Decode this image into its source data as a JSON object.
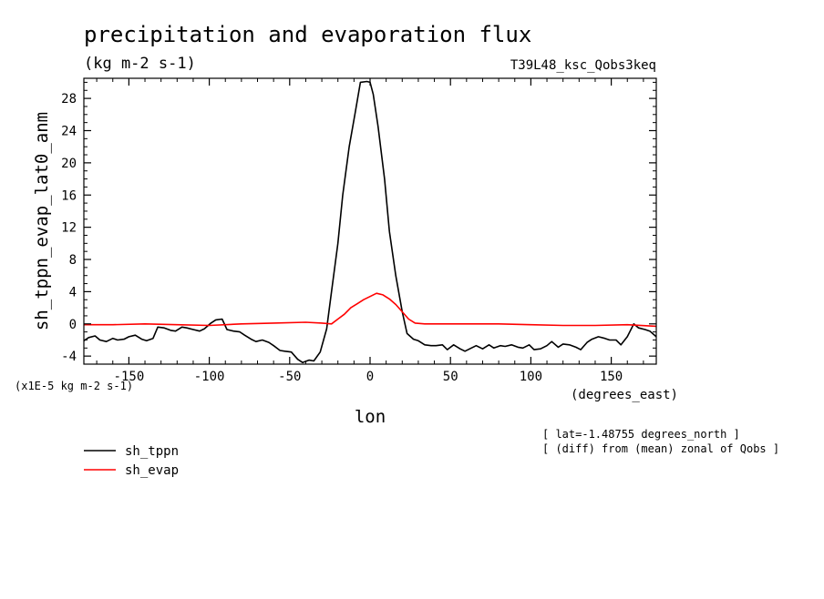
{
  "chart_data": {
    "type": "line",
    "title": "precipitation and evaporation flux",
    "subtitle": "(kg m-2 s-1)",
    "run_label": "T39L48_ksc_Qobs3keq",
    "xlabel": "lon",
    "x_units": "(degrees_east)",
    "ylabel": "sh_tppn_evap_lat0_anm",
    "y_scale_note": "(x1E-5 kg m-2 s-1)",
    "xlim": [
      -178,
      178
    ],
    "ylim": [
      -5,
      30.5
    ],
    "x_ticks": [
      -150,
      -100,
      -50,
      0,
      50,
      100,
      150
    ],
    "x_tick_labels": [
      "-150",
      "-100",
      "-50",
      "0",
      "50",
      "100",
      "150"
    ],
    "y_ticks": [
      -4,
      0,
      4,
      8,
      12,
      16,
      20,
      24,
      28
    ],
    "y_tick_labels": [
      "-4",
      "0",
      "4",
      "8",
      "12",
      "16",
      "20",
      "24",
      "28"
    ],
    "annotations": [
      "[ lat=-1.48755 degrees_north ]",
      "[ (diff) from (mean) zonal of Qobs ]"
    ],
    "legend_position": "bottom-left",
    "series": [
      {
        "name": "sh_tppn",
        "color": "#000000",
        "x": [
          -178,
          -175,
          -171,
          -168,
          -164,
          -160,
          -157,
          -153,
          -150,
          -146,
          -142,
          -139,
          -135,
          -132,
          -128,
          -124,
          -121,
          -117,
          -114,
          -110,
          -106,
          -103,
          -99,
          -96,
          -92,
          -89,
          -85,
          -81,
          -78,
          -74,
          -71,
          -67,
          -63,
          -60,
          -56,
          -53,
          -49,
          -45,
          -42,
          -38,
          -35,
          -31,
          -27,
          -24,
          -20,
          -17,
          -13,
          -9,
          -6,
          -2,
          0,
          2,
          5,
          9,
          12,
          16,
          20,
          23,
          27,
          30,
          34,
          38,
          41,
          45,
          48,
          52,
          56,
          59,
          63,
          66,
          70,
          74,
          77,
          81,
          84,
          88,
          92,
          95,
          99,
          102,
          106,
          110,
          113,
          117,
          120,
          124,
          128,
          131,
          135,
          138,
          142,
          146,
          149,
          153,
          156,
          160,
          164,
          167,
          171,
          174,
          178
        ],
        "y": [
          -2.1,
          -1.7,
          -1.5,
          -2.0,
          -2.2,
          -1.8,
          -2.0,
          -1.9,
          -1.6,
          -1.4,
          -1.9,
          -2.1,
          -1.8,
          -0.4,
          -0.5,
          -0.8,
          -0.9,
          -0.4,
          -0.5,
          -0.7,
          -0.9,
          -0.6,
          0.1,
          0.5,
          0.6,
          -0.7,
          -0.9,
          -1.0,
          -1.4,
          -1.9,
          -2.2,
          -2.0,
          -2.3,
          -2.7,
          -3.3,
          -3.4,
          -3.5,
          -4.4,
          -4.8,
          -4.5,
          -4.6,
          -3.5,
          -0.6,
          4.0,
          10.0,
          16.0,
          22.0,
          26.5,
          30.0,
          30.1,
          30.0,
          28.5,
          24.5,
          18.0,
          11.5,
          6.0,
          1.5,
          -1.2,
          -1.9,
          -2.1,
          -2.6,
          -2.7,
          -2.7,
          -2.6,
          -3.2,
          -2.6,
          -3.1,
          -3.4,
          -3.0,
          -2.7,
          -3.1,
          -2.6,
          -3.0,
          -2.7,
          -2.8,
          -2.6,
          -2.9,
          -3.0,
          -2.6,
          -3.2,
          -3.1,
          -2.7,
          -2.2,
          -2.9,
          -2.5,
          -2.6,
          -2.9,
          -3.2,
          -2.3,
          -1.9,
          -1.6,
          -1.8,
          -2.0,
          -2.0,
          -2.6,
          -1.6,
          0.0,
          -0.5,
          -0.7,
          -0.9,
          -1.6
        ]
      },
      {
        "name": "sh_evap",
        "color": "#ff0000",
        "x": [
          -178,
          -160,
          -140,
          -120,
          -100,
          -80,
          -60,
          -40,
          -30,
          -24,
          -20,
          -16,
          -12,
          -8,
          -4,
          0,
          4,
          8,
          12,
          16,
          20,
          24,
          28,
          34,
          40,
          60,
          80,
          100,
          120,
          140,
          160,
          178
        ],
        "y": [
          -0.1,
          -0.1,
          0.0,
          -0.1,
          -0.2,
          0.0,
          0.1,
          0.2,
          0.1,
          0.0,
          0.6,
          1.2,
          2.0,
          2.5,
          3.0,
          3.4,
          3.8,
          3.6,
          3.1,
          2.4,
          1.5,
          0.6,
          0.1,
          0.0,
          0.0,
          0.0,
          0.0,
          -0.1,
          -0.2,
          -0.2,
          -0.1,
          -0.3
        ]
      }
    ]
  }
}
